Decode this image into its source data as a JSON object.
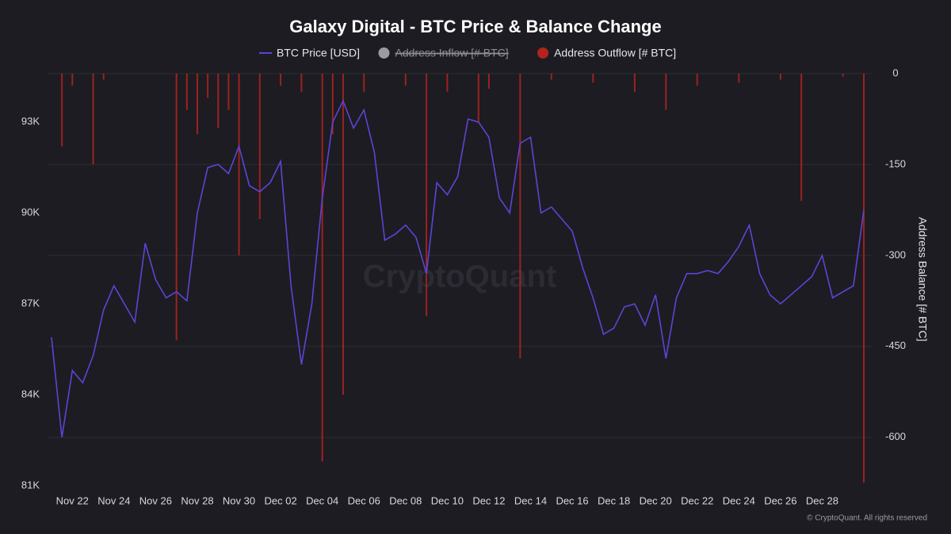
{
  "chart_data": {
    "type": "line-bar",
    "title": "Galaxy Digital - BTC Price & Balance Change",
    "y2_label": "Address Balance [# BTC]",
    "watermark": "CryptoQuant",
    "footer": "© CryptoQuant. All rights reserved",
    "categories": [
      null,
      null,
      "Nov 22",
      null,
      null,
      null,
      "Nov 24",
      null,
      null,
      null,
      "Nov 26",
      null,
      null,
      null,
      "Nov 28",
      null,
      null,
      null,
      "Nov 30",
      null,
      null,
      null,
      "Dec 02",
      null,
      null,
      null,
      "Dec 04",
      null,
      null,
      null,
      "Dec 06",
      null,
      null,
      null,
      "Dec 08",
      null,
      null,
      null,
      "Dec 10",
      null,
      null,
      null,
      "Dec 12",
      null,
      null,
      null,
      "Dec 14",
      null,
      null,
      null,
      "Dec 16",
      null,
      null,
      null,
      "Dec 18",
      null,
      null,
      null,
      "Dec 20",
      null,
      null,
      null,
      "Dec 22",
      null,
      null,
      null,
      "Dec 24",
      null,
      null,
      null,
      "Dec 26",
      null,
      null,
      null,
      "Dec 28",
      null,
      null,
      null,
      null
    ],
    "series": [
      {
        "name": "BTC Price [USD]",
        "color": "#5b45d6",
        "kind": "line",
        "values": [
          85900,
          82600,
          84800,
          84400,
          85300,
          86800,
          87600,
          87000,
          86400,
          89000,
          87800,
          87200,
          87400,
          87100,
          90000,
          91500,
          91600,
          91300,
          92200,
          90900,
          90700,
          91000,
          91700,
          87600,
          85000,
          87000,
          90500,
          93000,
          93700,
          92800,
          93400,
          92000,
          89100,
          89300,
          89600,
          89200,
          88000,
          91000,
          90600,
          91200,
          93100,
          93000,
          92500,
          90500,
          90000,
          92300,
          92500,
          90000,
          90200,
          89800,
          89400,
          88200,
          87200,
          86000,
          86200,
          86900,
          87000,
          86300,
          87300,
          85200,
          87200,
          88000,
          88000,
          88100,
          88000,
          88400,
          88900,
          89600,
          88000,
          87300,
          87000,
          87300,
          87600,
          87900,
          88600,
          87200,
          87400,
          87600,
          90100
        ]
      },
      {
        "name": "Address Inflow [# BTC]",
        "color": "#9b9ba3",
        "kind": "bar",
        "hidden": true
      },
      {
        "name": "Address Outflow [# BTC]",
        "color": "#b3231f",
        "kind": "bar",
        "axis": "y2",
        "values": [
          null,
          -120,
          -20,
          null,
          -150,
          -10,
          null,
          null,
          null,
          null,
          null,
          null,
          -440,
          -60,
          -100,
          -40,
          -90,
          -60,
          -300,
          null,
          -240,
          null,
          -20,
          null,
          -30,
          null,
          -640,
          -100,
          -530,
          null,
          -30,
          null,
          null,
          null,
          -20,
          null,
          -400,
          null,
          -30,
          null,
          null,
          -80,
          -25,
          null,
          null,
          -470,
          null,
          null,
          -10,
          null,
          null,
          null,
          -15,
          null,
          null,
          null,
          -30,
          null,
          null,
          -60,
          null,
          null,
          -20,
          null,
          null,
          null,
          -15,
          null,
          null,
          null,
          -10,
          null,
          -210,
          null,
          null,
          null,
          -5,
          null,
          -675
        ]
      }
    ],
    "ylim": [
      81000,
      94600
    ],
    "yticks": [
      {
        "value": 81000,
        "label": "81K"
      },
      {
        "value": 84000,
        "label": "84K"
      },
      {
        "value": 87000,
        "label": "87K"
      },
      {
        "value": 90000,
        "label": "90K"
      },
      {
        "value": 93000,
        "label": "93K"
      }
    ],
    "y2lim": [
      -680,
      0
    ],
    "y2ticks": [
      -600,
      -450,
      -300,
      -150,
      0
    ],
    "grid": true
  }
}
